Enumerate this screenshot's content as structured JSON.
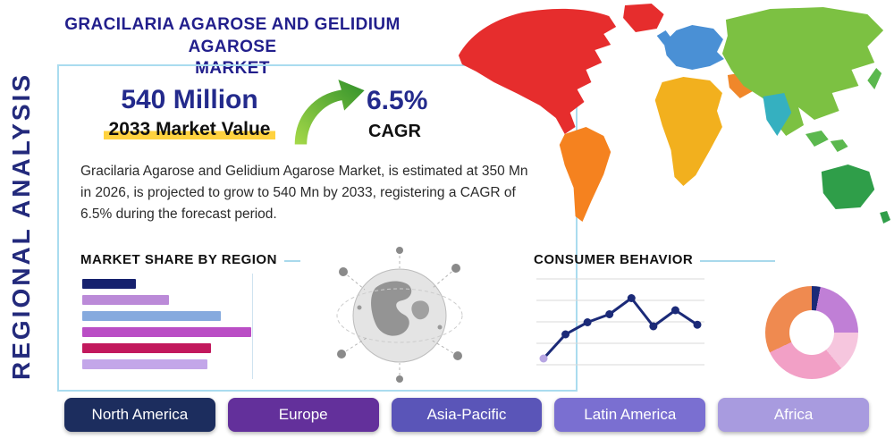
{
  "header": {
    "title_line1": "GRACILARIA AGAROSE AND GELIDIUM AGAROSE",
    "title_line2": "MARKET"
  },
  "sidebar": {
    "vertical_label": "REGIONAL ANALYSIS"
  },
  "stats": {
    "market_value": "540 Million",
    "market_value_caption": "2033 Market Value",
    "cagr_value": "6.5%",
    "cagr_label": "CAGR",
    "description": "Gracilaria Agarose and Gelidium Agarose Market, is estimated at 350 Mn in 2026, is projected to grow to 540 Mn by 2033, registering a CAGR of 6.5% during the forecast period."
  },
  "sections": {
    "market_share_heading": "MARKET SHARE BY REGION",
    "consumer_behavior_heading": "CONSUMER BEHAVIOR"
  },
  "chart_data": [
    {
      "id": "market-share-bars",
      "type": "bar",
      "orientation": "horizontal",
      "title": "MARKET SHARE BY REGION",
      "categories": [
        "",
        "",
        "",
        "",
        "",
        ""
      ],
      "values": [
        28,
        45,
        72,
        88,
        67,
        65
      ],
      "xlim": [
        0,
        100
      ],
      "colors": [
        "#16216e",
        "#bb8ad8",
        "#86aade",
        "#ba4ec5",
        "#c2195d",
        "#c3a6e9"
      ],
      "note": "bars are unlabeled in the infographic"
    },
    {
      "id": "consumer-behavior-line",
      "type": "line",
      "title": "CONSUMER BEHAVIOR",
      "x": [
        1,
        2,
        3,
        4,
        5,
        6,
        7,
        8
      ],
      "values": [
        10,
        40,
        55,
        65,
        85,
        50,
        70,
        52
      ],
      "ylim": [
        0,
        100
      ],
      "grid": true,
      "line_color": "#1b2a78",
      "point_color": "#1b2a78",
      "first_point_color": "#b7a6e3"
    },
    {
      "id": "regional-share-donut",
      "type": "pie",
      "donut": true,
      "slices": [
        {
          "name": "navy",
          "value": 3,
          "color": "#1b2a78"
        },
        {
          "name": "orchid",
          "value": 22,
          "color": "#c07fd6"
        },
        {
          "name": "light-pink",
          "value": 14,
          "color": "#f6c6de"
        },
        {
          "name": "pink",
          "value": 29,
          "color": "#f2a0c6"
        },
        {
          "name": "orange",
          "value": 32,
          "color": "#ef8a50"
        }
      ]
    }
  ],
  "map": {
    "north_america": "#e62d2d",
    "greenland": "#e62d2d",
    "south_america": "#f5821f",
    "europe": "#4a90d5",
    "uk": "#4a90d5",
    "africa": "#f2b01e",
    "middle_east": "#f0872a",
    "asia": "#7cc142",
    "india": "#35b0c0",
    "southeast_asia": "#5bb84e",
    "japan": "#5bb84e",
    "australia": "#2f9e49",
    "new_zealand": "#2f9e49"
  },
  "regions": [
    {
      "label": "North America",
      "color": "#1c2d5e"
    },
    {
      "label": "Europe",
      "color": "#63309b"
    },
    {
      "label": "Asia-Pacific",
      "color": "#5a55b8"
    },
    {
      "label": "Latin America",
      "color": "#7a6fd1"
    },
    {
      "label": "Africa",
      "color": "#a89bdf"
    }
  ],
  "theme": {
    "navy": "#232a7c",
    "accent_blue": "#a9d9ec",
    "highlight_yellow": "#ffd23f",
    "arrow_green": "#56b52e"
  }
}
